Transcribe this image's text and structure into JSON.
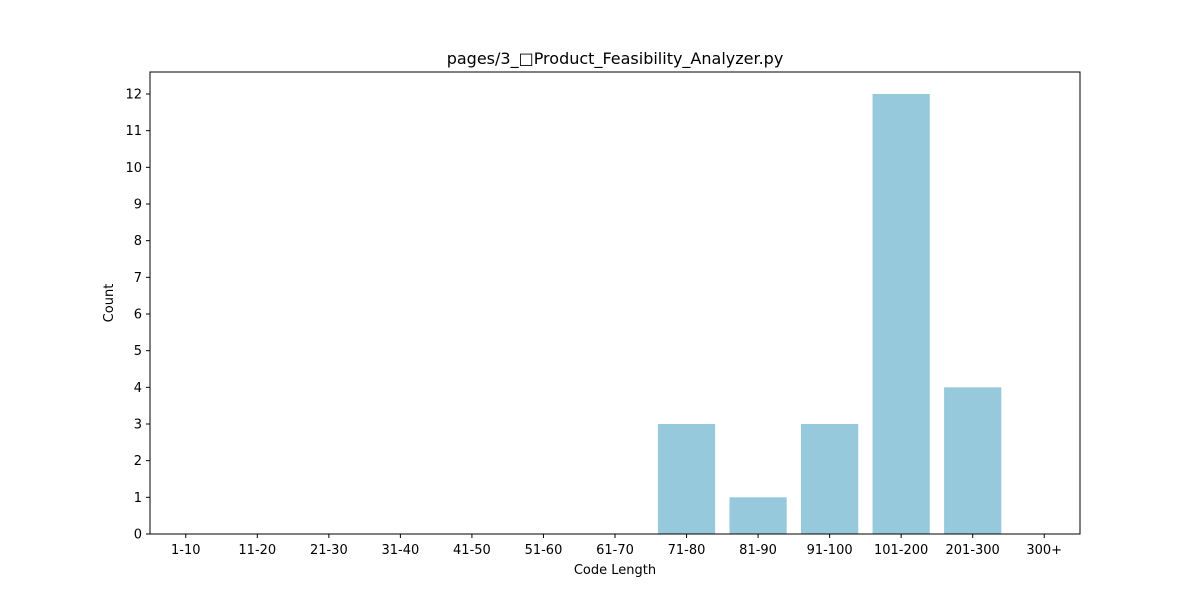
{
  "chart_data": {
    "type": "bar",
    "title": "pages/3_□Product_Feasibility_Analyzer.py",
    "xlabel": "Code Length",
    "ylabel": "Count",
    "categories": [
      "1-10",
      "11-20",
      "21-30",
      "31-40",
      "41-50",
      "51-60",
      "61-70",
      "71-80",
      "81-90",
      "91-100",
      "101-200",
      "201-300",
      "300+"
    ],
    "values": [
      0,
      0,
      0,
      0,
      0,
      0,
      0,
      3,
      1,
      3,
      12,
      4,
      0
    ],
    "ylim": [
      0,
      12.6
    ],
    "yticks": [
      0,
      1,
      2,
      3,
      4,
      5,
      6,
      7,
      8,
      9,
      10,
      11,
      12
    ],
    "bar_color": "#96c9dc",
    "grid": false,
    "legend": "none"
  }
}
